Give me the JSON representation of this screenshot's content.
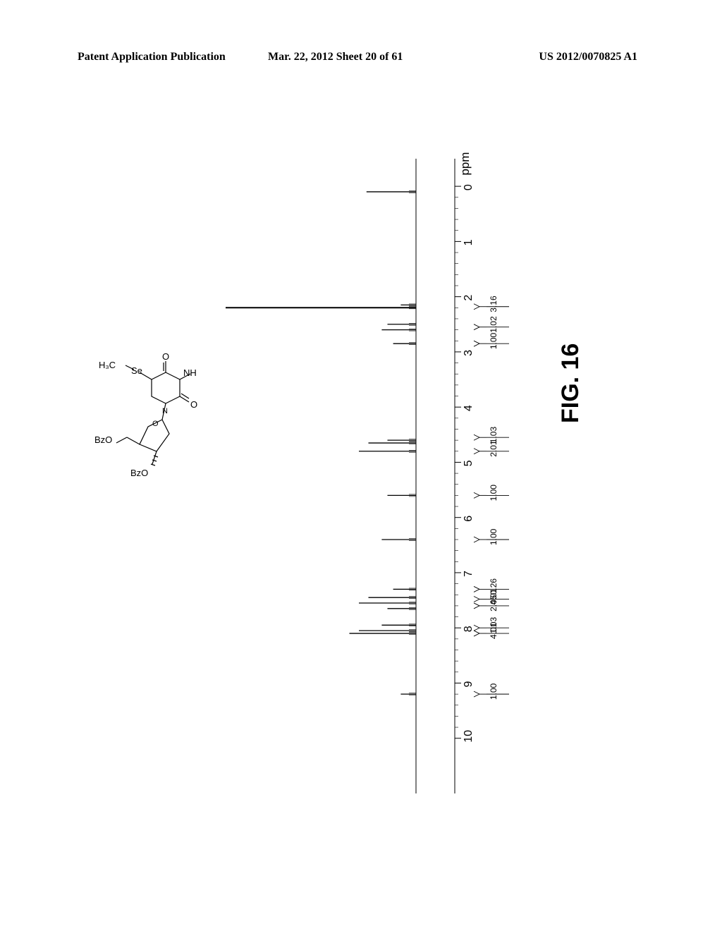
{
  "header": {
    "left": "Patent Application Publication",
    "center": "Mar. 22, 2012  Sheet 20 of 61",
    "right": "US 2012/0070825 A1"
  },
  "figure_label": "FIG. 16",
  "molecule": {
    "labels": {
      "h3c": "H₃C",
      "se": "Se",
      "o_top": "O",
      "nh": "NH",
      "n": "N",
      "o_right": "O",
      "bzo1": "BzO",
      "o_ring": "O",
      "bzo2": "BzO"
    }
  },
  "nmr": {
    "type": "1H-NMR-spectrum",
    "orientation": "rotated-90-ccw",
    "axis_unit": "ppm",
    "x_min": -0.5,
    "x_max": 11,
    "ticks": [
      10,
      9,
      8,
      7,
      6,
      5,
      4,
      3,
      2,
      1,
      0
    ],
    "tick_labels": [
      "10",
      "9",
      "8",
      "7",
      "6",
      "5",
      "4",
      "3",
      "2",
      "1",
      "0"
    ],
    "baseline_color": "#000000",
    "background_color": "#ffffff",
    "peaks": [
      {
        "ppm": 9.2,
        "height": 0.08
      },
      {
        "ppm": 8.1,
        "height": 0.35
      },
      {
        "ppm": 8.05,
        "height": 0.3
      },
      {
        "ppm": 7.95,
        "height": 0.18
      },
      {
        "ppm": 7.65,
        "height": 0.15
      },
      {
        "ppm": 7.55,
        "height": 0.3
      },
      {
        "ppm": 7.45,
        "height": 0.25
      },
      {
        "ppm": 7.3,
        "height": 0.12
      },
      {
        "ppm": 6.4,
        "height": 0.18
      },
      {
        "ppm": 5.6,
        "height": 0.15
      },
      {
        "ppm": 4.8,
        "height": 0.3
      },
      {
        "ppm": 4.65,
        "height": 0.25
      },
      {
        "ppm": 4.6,
        "height": 0.15
      },
      {
        "ppm": 2.85,
        "height": 0.12
      },
      {
        "ppm": 2.6,
        "height": 0.18
      },
      {
        "ppm": 2.5,
        "height": 0.15
      },
      {
        "ppm": 2.2,
        "height": 1.0
      },
      {
        "ppm": 2.15,
        "height": 0.08
      },
      {
        "ppm": 0.1,
        "height": 0.26
      }
    ],
    "integrals": [
      {
        "ppm": 9.2,
        "value": "1.00"
      },
      {
        "ppm": 8.1,
        "value": "4.01"
      },
      {
        "ppm": 8.0,
        "value": "1.03"
      },
      {
        "ppm": 7.6,
        "value": "2.05"
      },
      {
        "ppm": 7.48,
        "value": "4.01"
      },
      {
        "ppm": 7.3,
        "value": "0.26"
      },
      {
        "ppm": 6.4,
        "value": "1.00"
      },
      {
        "ppm": 5.6,
        "value": "1.00"
      },
      {
        "ppm": 4.8,
        "value": "2.01"
      },
      {
        "ppm": 4.55,
        "value": "1.03"
      },
      {
        "ppm": 2.85,
        "value": "1.00"
      },
      {
        "ppm": 2.55,
        "value": "1.02"
      },
      {
        "ppm": 2.18,
        "value": "3.16"
      }
    ]
  }
}
